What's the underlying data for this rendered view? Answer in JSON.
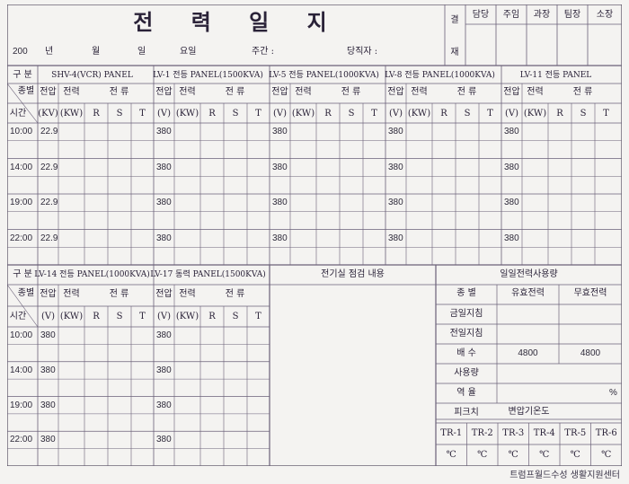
{
  "form": {
    "title": "전 력 일 지",
    "date_line": {
      "year": "200",
      "y_label": "년",
      "m_label": "월",
      "d_label": "일",
      "dow_label": "요일",
      "shift_label": "주간 :",
      "duty_label": "당직자 :"
    },
    "approval": {
      "side_label": [
        "결",
        "재"
      ],
      "roles": [
        "담당",
        "주임",
        "과장",
        "팀장",
        "소장"
      ]
    }
  },
  "row_headers": {
    "section": "구 분",
    "type": "종별",
    "time": "시간",
    "volt": "전압",
    "power": "전력",
    "current": "전 류",
    "phases": [
      "R",
      "S",
      "T"
    ]
  },
  "panels_top": [
    {
      "name": "SHV-4(VCR) PANEL",
      "volt_unit": "(KV)",
      "power_unit": "(KW)"
    },
    {
      "name": "LV-1 전등 PANEL(1500KVA)",
      "volt_unit": "(V)",
      "power_unit": "(KW)"
    },
    {
      "name": "LV-5 전등 PANEL(1000KVA)",
      "volt_unit": "(V)",
      "power_unit": "(KW)"
    },
    {
      "name": "LV-8 전등 PANEL(1000KVA)",
      "volt_unit": "(V)",
      "power_unit": "(KW)"
    },
    {
      "name": "LV-11 전등 PANEL",
      "volt_unit": "(V)",
      "power_unit": "(KW)"
    }
  ],
  "top_times": [
    "10:00",
    "14:00",
    "19:00",
    "22:00"
  ],
  "top_voltages": [
    "22.9",
    "380",
    "380",
    "380",
    "380"
  ],
  "panels_bottom": [
    {
      "name": "LV-14 전등 PANEL(1000KVA)",
      "volt_unit": "(V)",
      "power_unit": "(KW)"
    },
    {
      "name": "LV-17 동력 PANEL(1500KVA)",
      "volt_unit": "(V)",
      "power_unit": "(KW)"
    }
  ],
  "bottom_times": [
    "10:00",
    "14:00",
    "19:00",
    "22:00"
  ],
  "bottom_voltages": [
    "380",
    "380"
  ],
  "inspection": {
    "title": "전기실 점검 내용"
  },
  "daily_usage": {
    "title": "일일전력사용량",
    "col_item": "종 별",
    "col_active": "유효전력",
    "col_reactive": "무효전력",
    "rows": [
      {
        "label": "금일지침",
        "active": "",
        "reactive": ""
      },
      {
        "label": "전일지침",
        "active": "",
        "reactive": ""
      },
      {
        "label": "배 수",
        "active": "4800",
        "reactive": "4800"
      },
      {
        "label": "사용량",
        "active": "",
        "reactive": ""
      },
      {
        "label": "역 율",
        "active": "",
        "reactive": "%"
      },
      {
        "label": "피크치",
        "active": "",
        "reactive": ""
      }
    ]
  },
  "transformer": {
    "title": "변압기온도",
    "units": [
      "TR-1",
      "TR-2",
      "TR-3",
      "TR-4",
      "TR-5",
      "TR-6"
    ],
    "unit_symbol": "℃"
  },
  "footer": "트럼프월드수성 생활지원센터"
}
